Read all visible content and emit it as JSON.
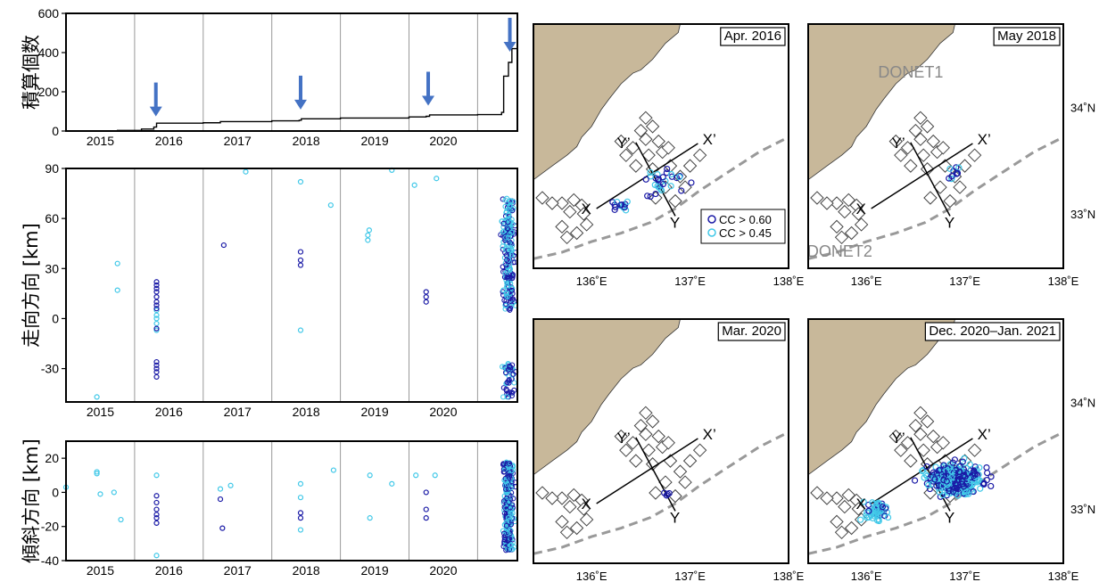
{
  "chart_data": {
    "type": "scatter",
    "timeseries": [
      {
        "id": "cumulative",
        "type": "line",
        "ylabel": "積算個数",
        "ylim": [
          0,
          600
        ],
        "yticks": [
          0,
          200,
          400,
          600
        ],
        "xlim": [
          2014.5,
          2021.08
        ],
        "xticks": [
          "2015",
          "2016",
          "2017",
          "2018",
          "2019",
          "2020"
        ],
        "xtick_values": [
          2015,
          2016,
          2017,
          2018,
          2019,
          2020
        ],
        "year_boundaries": [
          2015.5,
          2016.5,
          2017.5,
          2018.5,
          2019.5,
          2020.5
        ],
        "series": [
          {
            "x": [
              2014.5,
              2015.25,
              2015.6,
              2015.78,
              2015.82,
              2016.5,
              2016.75,
              2017.5,
              2017.9,
              2017.93,
              2018.5,
              2019.5,
              2019.75,
              2019.8,
              2020.5,
              2020.85,
              2020.88,
              2020.95,
              2021.0,
              2021.08
            ],
            "y": [
              0,
              3,
              10,
              20,
              40,
              42,
              48,
              52,
              55,
              62,
              66,
              72,
              75,
              82,
              84,
              95,
              280,
              350,
              420,
              470
            ]
          }
        ],
        "arrows": [
          2015.81,
          2017.92,
          2019.78,
          2020.97
        ]
      },
      {
        "id": "strike",
        "type": "scatter",
        "ylabel": "走向方向 [km]",
        "ylim": [
          -50,
          90
        ],
        "yticks": [
          -30,
          0,
          30,
          60,
          90
        ],
        "xticks": [
          "2015",
          "2016",
          "2017",
          "2018",
          "2019",
          "2020"
        ],
        "series": [
          {
            "name": "CC > 0.60",
            "color": "#1a1aa6",
            "x": [
              2015.82,
              2015.82,
              2015.82,
              2015.82,
              2015.82,
              2015.82,
              2015.82,
              2015.82,
              2015.82,
              2015.82,
              2015.82,
              2015.82,
              2015.82,
              2015.82,
              2016.8,
              2017.92,
              2017.92,
              2017.92,
              2019.75,
              2019.75,
              2019.75
            ],
            "y": [
              22,
              20,
              18,
              16,
              13,
              10,
              8,
              6,
              -6,
              -26,
              -28,
              -30,
              -32,
              -35,
              44,
              40,
              35,
              32,
              16,
              13,
              10
            ]
          },
          {
            "name": "CC > 0.45",
            "color": "#40c8e8",
            "x": [
              2014.95,
              2015.25,
              2015.25,
              2015.82,
              2015.82,
              2015.82,
              2015.82,
              2015.82,
              2017.12,
              2017.92,
              2017.92,
              2018.36,
              2018.9,
              2018.9,
              2018.92,
              2019.25,
              2019.58,
              2019.9
            ],
            "y": [
              -47,
              33,
              17,
              2,
              5,
              -3,
              0,
              -7,
              88,
              82,
              -7,
              68,
              50,
              47,
              53,
              89,
              80,
              84
            ]
          }
        ]
      },
      {
        "id": "dip",
        "type": "scatter",
        "ylabel": "傾斜方向 [km]",
        "ylim": [
          -40,
          30
        ],
        "yticks": [
          -40,
          -20,
          0,
          20
        ],
        "xticks": [
          "2015",
          "2016",
          "2017",
          "2018",
          "2019",
          "2020"
        ],
        "series": [
          {
            "name": "CC > 0.60",
            "color": "#1a1aa6",
            "x": [
              2015.82,
              2015.82,
              2015.82,
              2015.82,
              2015.82,
              2015.82,
              2016.75,
              2016.78,
              2017.92,
              2017.92,
              2019.75,
              2019.75,
              2019.75
            ],
            "y": [
              -2,
              -6,
              -10,
              -13,
              -15,
              -18,
              -4,
              -21,
              -12,
              -15,
              0,
              -10,
              -15
            ]
          },
          {
            "name": "CC > 0.45",
            "color": "#40c8e8",
            "x": [
              2014.5,
              2014.95,
              2014.95,
              2015.0,
              2015.2,
              2015.3,
              2015.82,
              2015.82,
              2016.75,
              2016.9,
              2017.92,
              2017.92,
              2017.92,
              2018.4,
              2018.93,
              2018.93,
              2019.25,
              2019.6,
              2019.88
            ],
            "y": [
              3,
              11,
              12,
              -1,
              0,
              -16,
              10,
              -37,
              2,
              4,
              5,
              -3,
              -22,
              13,
              10,
              -15,
              5,
              10,
              10
            ]
          }
        ]
      }
    ],
    "maps": [
      {
        "title": "Apr. 2016",
        "events": "2016"
      },
      {
        "title": "May 2018",
        "events": "2018"
      },
      {
        "title": "Mar. 2020",
        "events": "2020"
      },
      {
        "title": "Dec. 2020–Jan. 2021",
        "events": "2021"
      }
    ],
    "map_axes": {
      "xticks": [
        "136˚E",
        "137˚E",
        "138˚E"
      ],
      "yticks": [
        "34˚N",
        "33˚N"
      ],
      "profile_labels": [
        "X",
        "X’",
        "Y",
        "Y’"
      ],
      "network_labels": [
        "DONET1",
        "DONET2"
      ],
      "legend": [
        {
          "label": "CC > 0.60",
          "color": "#1a1aa6"
        },
        {
          "label": "CC > 0.45",
          "color": "#40c8e8"
        }
      ]
    },
    "colors": {
      "high_cc": "#1a1aa6",
      "low_cc": "#40c8e8",
      "land": "#c8b89a",
      "arrow": "#4472c4",
      "trough": "#999999"
    }
  }
}
